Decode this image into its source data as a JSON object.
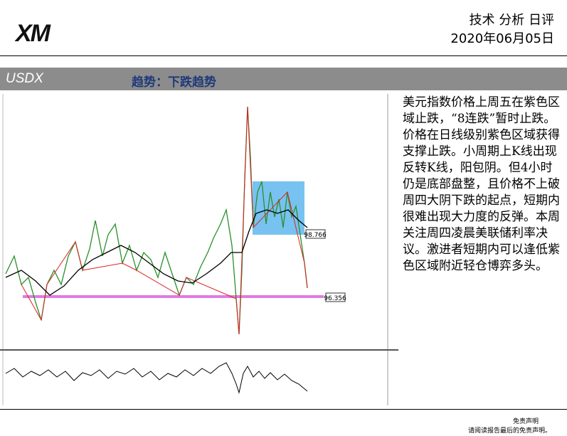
{
  "header": {
    "logo": "XM",
    "title": "技术 分析 日评",
    "date": "2020年06月05日"
  },
  "section": {
    "symbol": "USDX",
    "trend": "趋势：下跌趋势"
  },
  "chart": {
    "labels": [
      "98.766",
      "96.356"
    ]
  },
  "analysis": "美元指数价格上周五在紫色区域止跌，“8连跌”暂时止跌。价格在日线级别紫色区域获得支撑止跌。小周期上K线出现反转K线，阳包阴。但4小时仍是底部盘整，且价格不上破周四大阴下跌的起点，短期内很难出现大力度的反弹。本周关注周四凌晨美联储利率决议。激进者短期内可以逢低紫色区域附近轻仓博弈多头。",
  "footer": {
    "disclaimer": "免责声明",
    "note": "请阅读报告最后的免责声明。"
  }
}
